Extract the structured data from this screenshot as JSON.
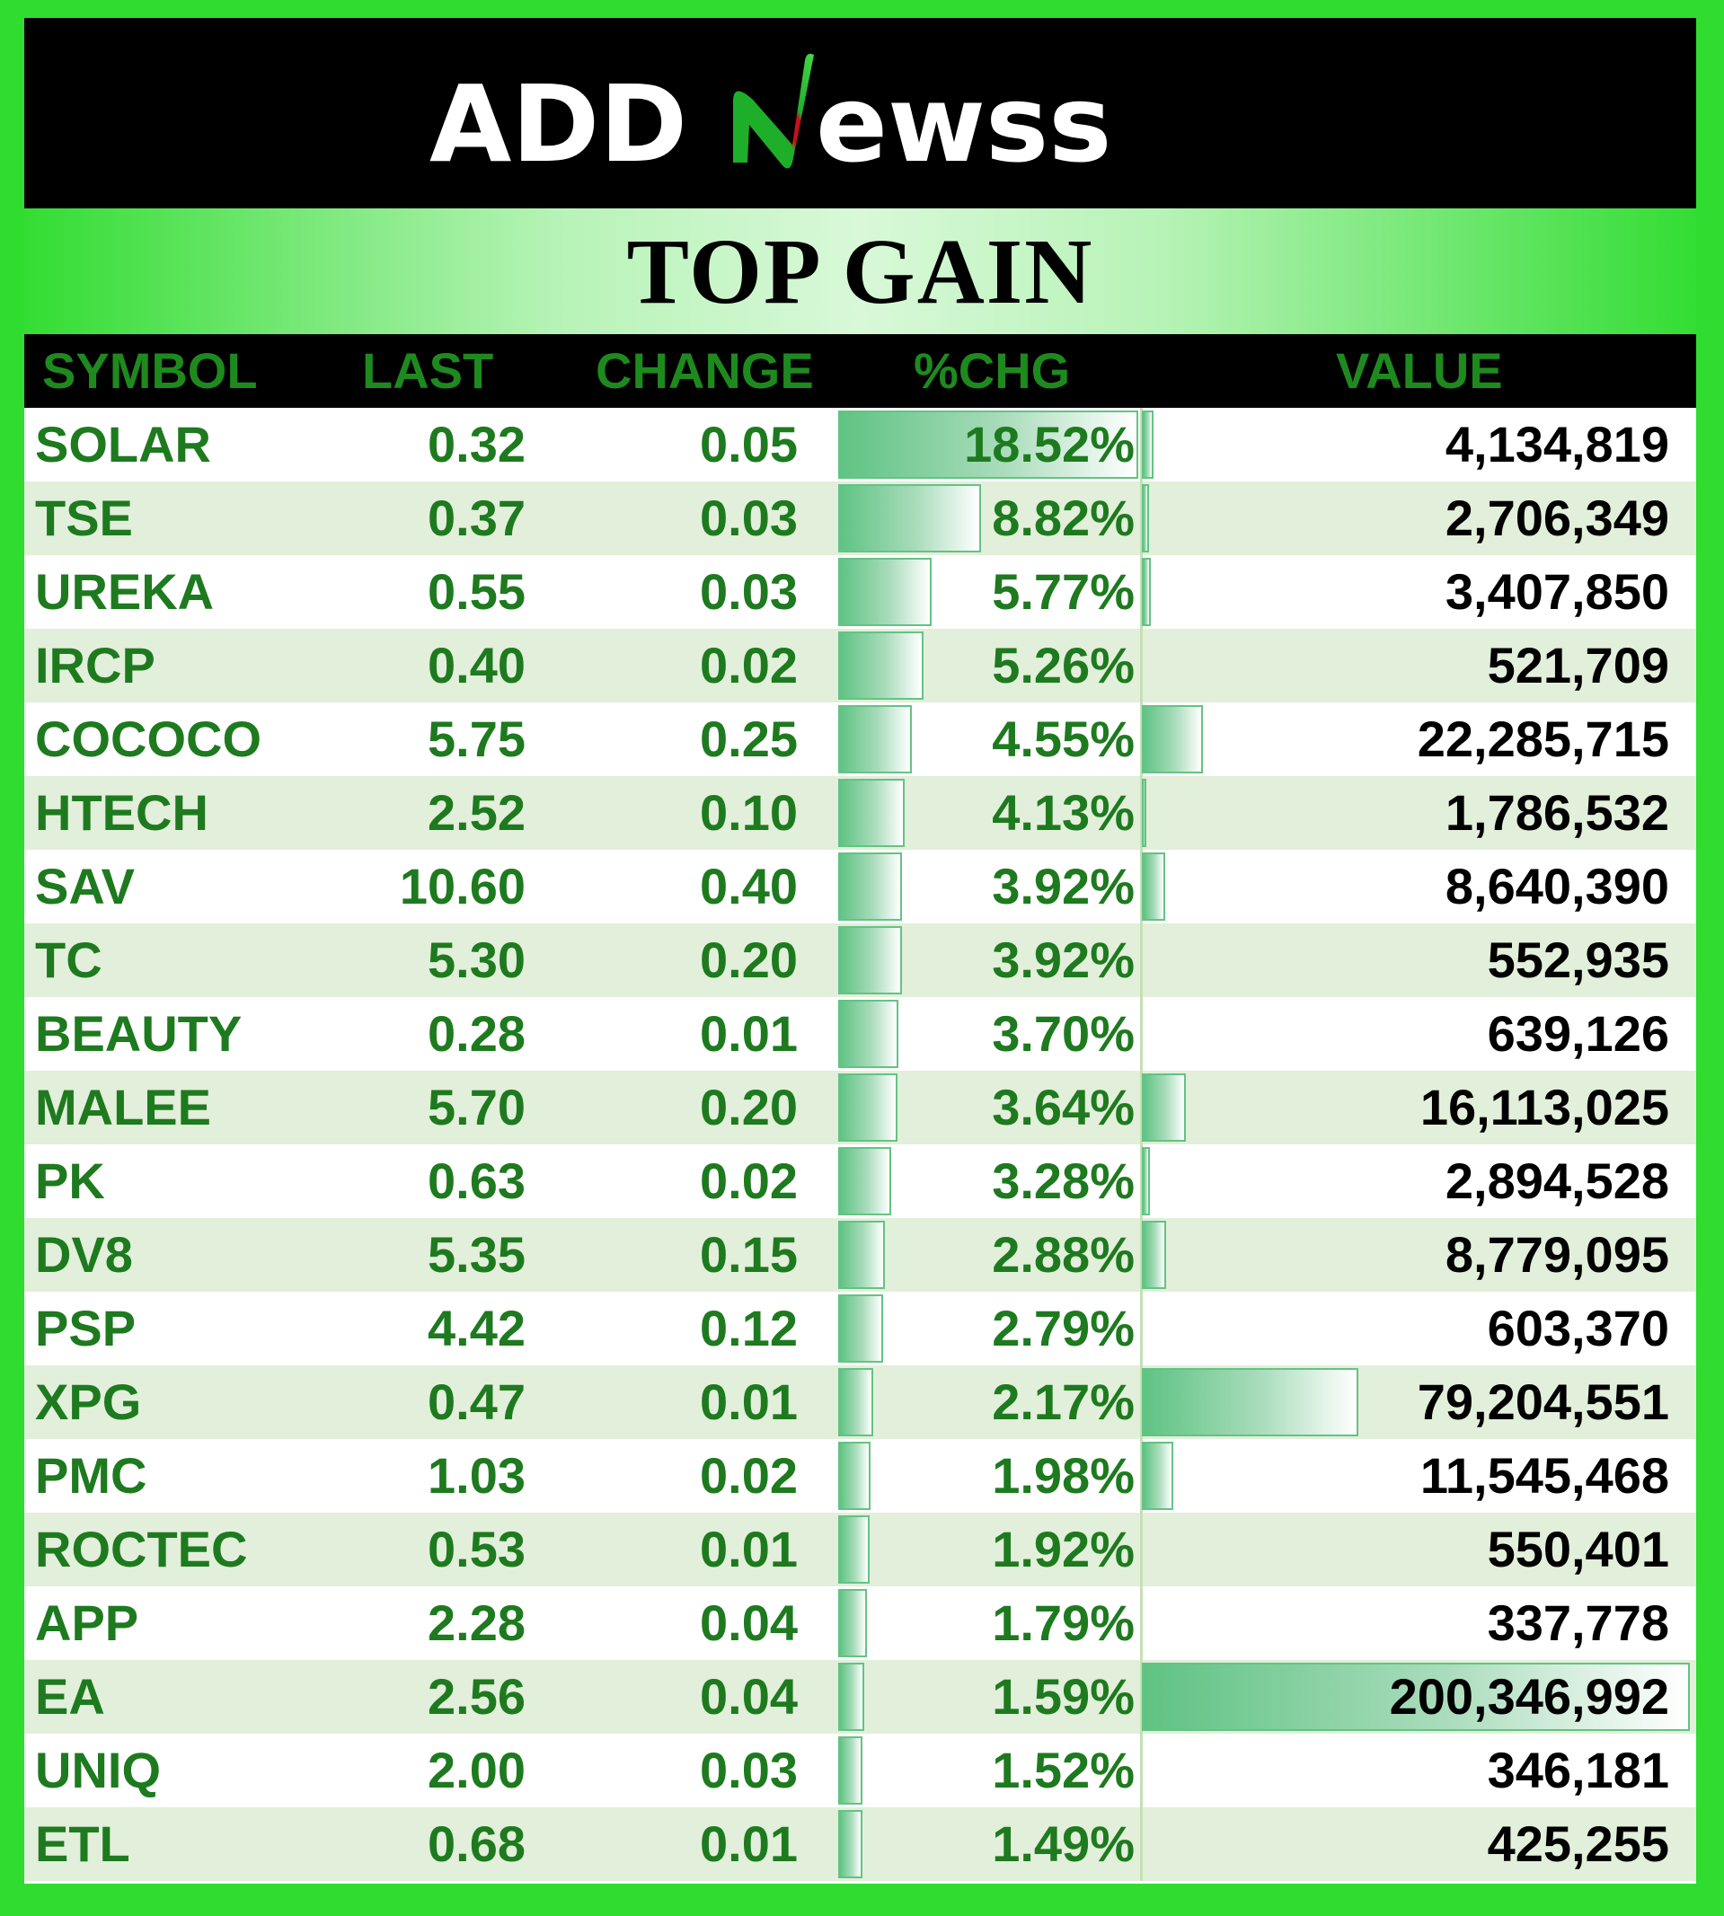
{
  "brand": {
    "logo_text": "ADDNewss"
  },
  "title": "TOP GAIN",
  "columns": {
    "symbol": "SYMBOL",
    "last": "LAST",
    "change": "CHANGE",
    "pchg": "%CHG",
    "value": "VALUE"
  },
  "colors": {
    "accent_green": "#2fdc2f",
    "text_green": "#1e7a1e",
    "bar_green": "#63c384",
    "alt_row": "#e2efda"
  },
  "rows": [
    {
      "symbol": "SOLAR",
      "last": "0.32",
      "change": "0.05",
      "pchg": "18.52%",
      "value": "4,134,819",
      "pchg_num": 18.52,
      "value_num": 4134819
    },
    {
      "symbol": "TSE",
      "last": "0.37",
      "change": "0.03",
      "pchg": "8.82%",
      "value": "2,706,349",
      "pchg_num": 8.82,
      "value_num": 2706349
    },
    {
      "symbol": "UREKA",
      "last": "0.55",
      "change": "0.03",
      "pchg": "5.77%",
      "value": "3,407,850",
      "pchg_num": 5.77,
      "value_num": 3407850
    },
    {
      "symbol": "IRCP",
      "last": "0.40",
      "change": "0.02",
      "pchg": "5.26%",
      "value": "521,709",
      "pchg_num": 5.26,
      "value_num": 521709
    },
    {
      "symbol": "COCOCO",
      "last": "5.75",
      "change": "0.25",
      "pchg": "4.55%",
      "value": "22,285,715",
      "pchg_num": 4.55,
      "value_num": 22285715
    },
    {
      "symbol": "HTECH",
      "last": "2.52",
      "change": "0.10",
      "pchg": "4.13%",
      "value": "1,786,532",
      "pchg_num": 4.13,
      "value_num": 1786532
    },
    {
      "symbol": "SAV",
      "last": "10.60",
      "change": "0.40",
      "pchg": "3.92%",
      "value": "8,640,390",
      "pchg_num": 3.92,
      "value_num": 8640390
    },
    {
      "symbol": "TC",
      "last": "5.30",
      "change": "0.20",
      "pchg": "3.92%",
      "value": "552,935",
      "pchg_num": 3.92,
      "value_num": 552935
    },
    {
      "symbol": "BEAUTY",
      "last": "0.28",
      "change": "0.01",
      "pchg": "3.70%",
      "value": "639,126",
      "pchg_num": 3.7,
      "value_num": 639126
    },
    {
      "symbol": "MALEE",
      "last": "5.70",
      "change": "0.20",
      "pchg": "3.64%",
      "value": "16,113,025",
      "pchg_num": 3.64,
      "value_num": 16113025
    },
    {
      "symbol": "PK",
      "last": "0.63",
      "change": "0.02",
      "pchg": "3.28%",
      "value": "2,894,528",
      "pchg_num": 3.28,
      "value_num": 2894528
    },
    {
      "symbol": "DV8",
      "last": "5.35",
      "change": "0.15",
      "pchg": "2.88%",
      "value": "8,779,095",
      "pchg_num": 2.88,
      "value_num": 8779095
    },
    {
      "symbol": "PSP",
      "last": "4.42",
      "change": "0.12",
      "pchg": "2.79%",
      "value": "603,370",
      "pchg_num": 2.79,
      "value_num": 603370
    },
    {
      "symbol": "XPG",
      "last": "0.47",
      "change": "0.01",
      "pchg": "2.17%",
      "value": "79,204,551",
      "pchg_num": 2.17,
      "value_num": 79204551
    },
    {
      "symbol": "PMC",
      "last": "1.03",
      "change": "0.02",
      "pchg": "1.98%",
      "value": "11,545,468",
      "pchg_num": 1.98,
      "value_num": 11545468
    },
    {
      "symbol": "ROCTEC",
      "last": "0.53",
      "change": "0.01",
      "pchg": "1.92%",
      "value": "550,401",
      "pchg_num": 1.92,
      "value_num": 550401
    },
    {
      "symbol": "APP",
      "last": "2.28",
      "change": "0.04",
      "pchg": "1.79%",
      "value": "337,778",
      "pchg_num": 1.79,
      "value_num": 337778
    },
    {
      "symbol": "EA",
      "last": "2.56",
      "change": "0.04",
      "pchg": "1.59%",
      "value": "200,346,992",
      "pchg_num": 1.59,
      "value_num": 200346992
    },
    {
      "symbol": "UNIQ",
      "last": "2.00",
      "change": "0.03",
      "pchg": "1.52%",
      "value": "346,181",
      "pchg_num": 1.52,
      "value_num": 346181
    },
    {
      "symbol": "ETL",
      "last": "0.68",
      "change": "0.01",
      "pchg": "1.49%",
      "value": "425,255",
      "pchg_num": 1.49,
      "value_num": 425255
    }
  ]
}
